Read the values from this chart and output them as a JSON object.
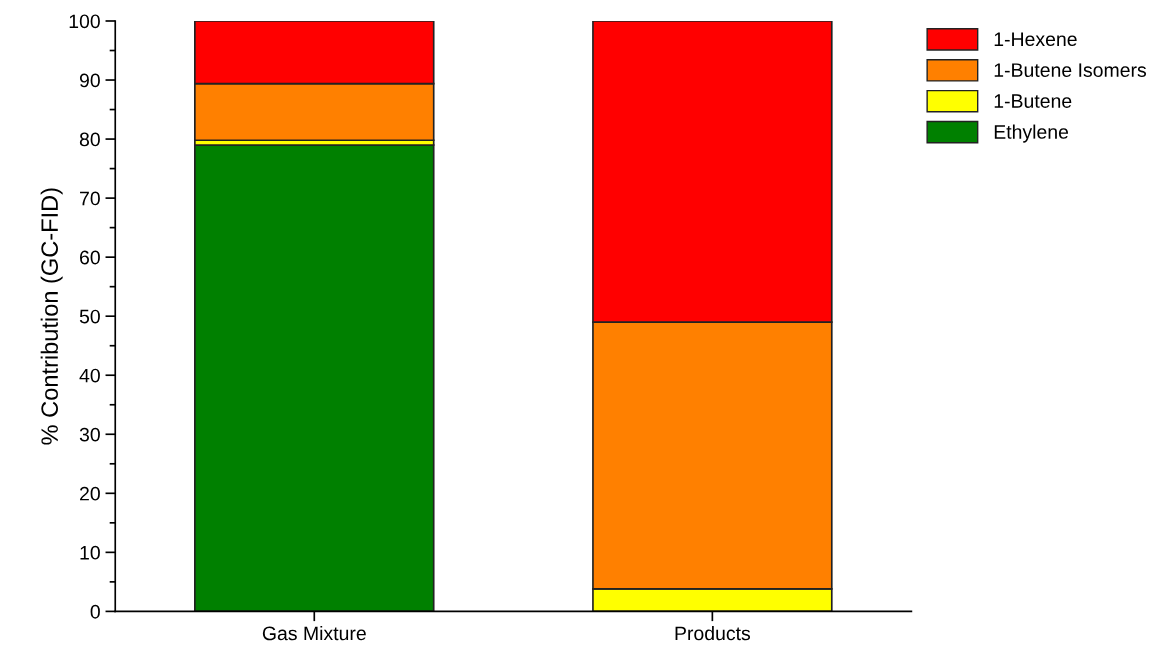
{
  "chart_data": {
    "type": "bar",
    "stacked": true,
    "ylabel": "% Contribution (GC-FID)",
    "categories": [
      "Gas Mixture",
      "Products"
    ],
    "series": [
      {
        "name": "Ethylene",
        "color": "#008000",
        "values": [
          79.0,
          0
        ]
      },
      {
        "name": "1-Butene",
        "color": "#ffff00",
        "values": [
          0.8,
          3.8
        ]
      },
      {
        "name": "1-Butene Isomers",
        "color": "#ff8000",
        "values": [
          9.6,
          45.2
        ]
      },
      {
        "name": "1-Hexene",
        "color": "#ff0000",
        "values": [
          10.6,
          51.0
        ]
      }
    ],
    "ylim": [
      0,
      100
    ],
    "yticks": [
      0,
      10,
      20,
      30,
      40,
      50,
      60,
      70,
      80,
      90,
      100
    ],
    "grid": false,
    "legend": "top right"
  }
}
